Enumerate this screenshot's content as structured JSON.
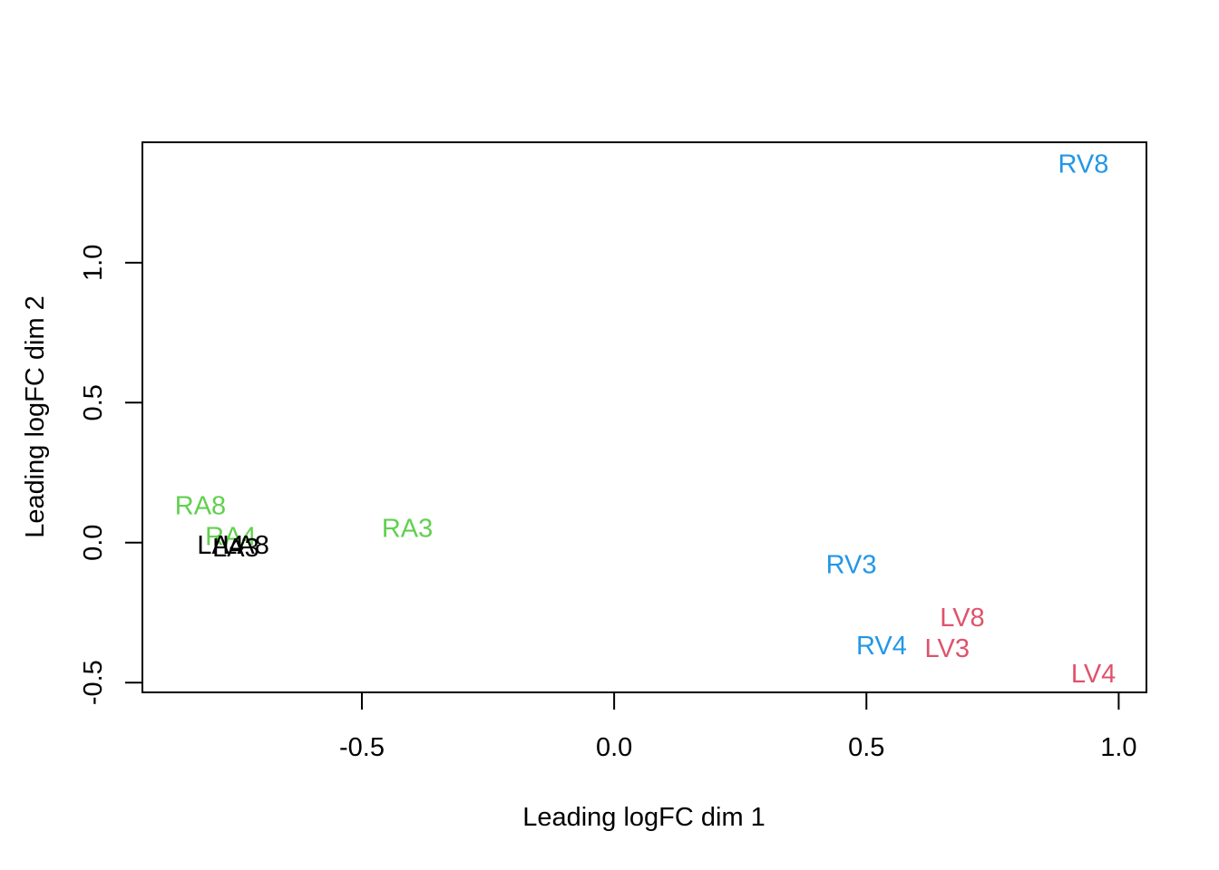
{
  "chart_data": {
    "type": "scatter",
    "xlabel": "Leading logFC dim 1",
    "ylabel": "Leading logFC dim 2",
    "xlim": [
      -0.935,
      1.055
    ],
    "ylim": [
      -0.535,
      1.43
    ],
    "xticks": [
      -0.5,
      0.0,
      0.5,
      1.0
    ],
    "xtick_labels": [
      "-0.5",
      "0.0",
      "0.5",
      "1.0"
    ],
    "yticks": [
      -0.5,
      0.0,
      0.5,
      1.0
    ],
    "ytick_labels": [
      "-0.5",
      "0.0",
      "0.5",
      "1.0"
    ],
    "grid": false,
    "points": [
      {
        "label": "RA8",
        "x": -0.82,
        "y": 0.13,
        "color": "#61D04F"
      },
      {
        "label": "RA4",
        "x": -0.76,
        "y": 0.02,
        "color": "#61D04F"
      },
      {
        "label": "RA3",
        "x": -0.41,
        "y": 0.05,
        "color": "#61D04F"
      },
      {
        "label": "LA4",
        "x": -0.78,
        "y": -0.01,
        "color": "#000000"
      },
      {
        "label": "LA8",
        "x": -0.73,
        "y": -0.01,
        "color": "#000000"
      },
      {
        "label": "LA3",
        "x": -0.75,
        "y": -0.02,
        "color": "#000000"
      },
      {
        "label": "RV8",
        "x": 0.93,
        "y": 1.35,
        "color": "#2297E6"
      },
      {
        "label": "RV3",
        "x": 0.47,
        "y": -0.08,
        "color": "#2297E6"
      },
      {
        "label": "RV4",
        "x": 0.53,
        "y": -0.37,
        "color": "#2297E6"
      },
      {
        "label": "LV8",
        "x": 0.69,
        "y": -0.27,
        "color": "#DF536B"
      },
      {
        "label": "LV3",
        "x": 0.66,
        "y": -0.38,
        "color": "#DF536B"
      },
      {
        "label": "LV4",
        "x": 0.95,
        "y": -0.47,
        "color": "#DF536B"
      }
    ]
  }
}
